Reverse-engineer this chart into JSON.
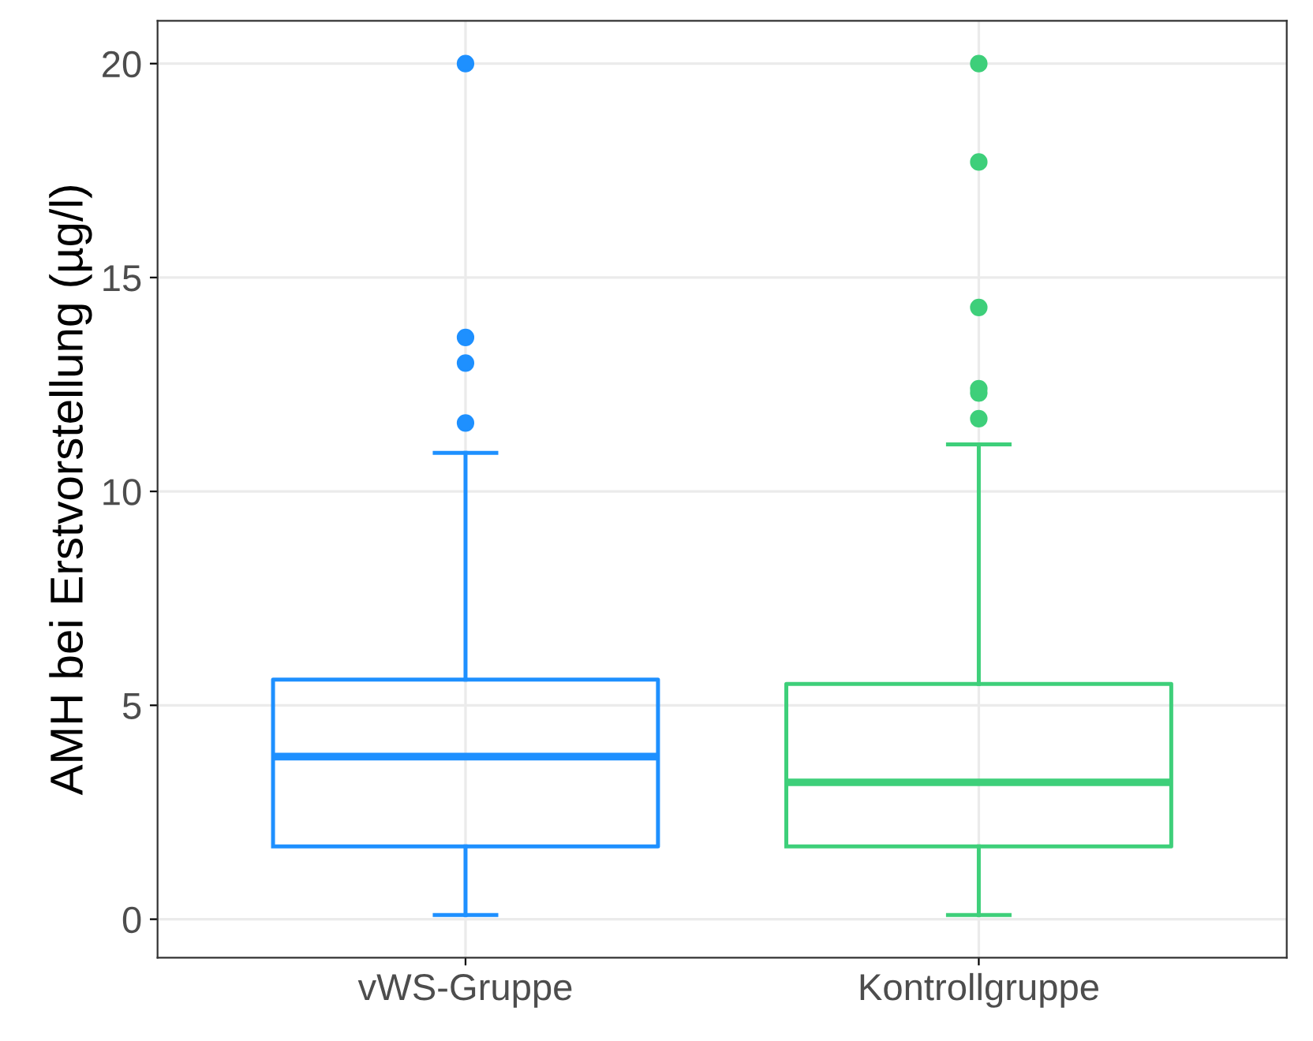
{
  "chart_data": {
    "type": "box",
    "ylabel": "AMH bei Erstvorstellung (µg/l)",
    "categories": [
      "vWS-Gruppe",
      "Kontrollgruppe"
    ],
    "series": [
      {
        "color": "#1e90ff",
        "boxes": [
          {
            "low": 0.1,
            "q1": 1.7,
            "median": 3.8,
            "q3": 5.6,
            "high": 10.9,
            "outliers": [
              11.6,
              13.0,
              13.6,
              20.0
            ]
          },
          null
        ]
      },
      {
        "color": "#3ecf7a",
        "boxes": [
          null,
          {
            "low": 0.1,
            "q1": 1.7,
            "median": 3.2,
            "q3": 5.5,
            "high": 11.1,
            "outliers": [
              11.7,
              12.3,
              12.4,
              14.3,
              17.7,
              20.0
            ]
          }
        ]
      }
    ],
    "ylim": [
      -0.9,
      21
    ],
    "yticks": [
      0,
      5,
      10,
      15,
      20
    ],
    "grid": true
  }
}
